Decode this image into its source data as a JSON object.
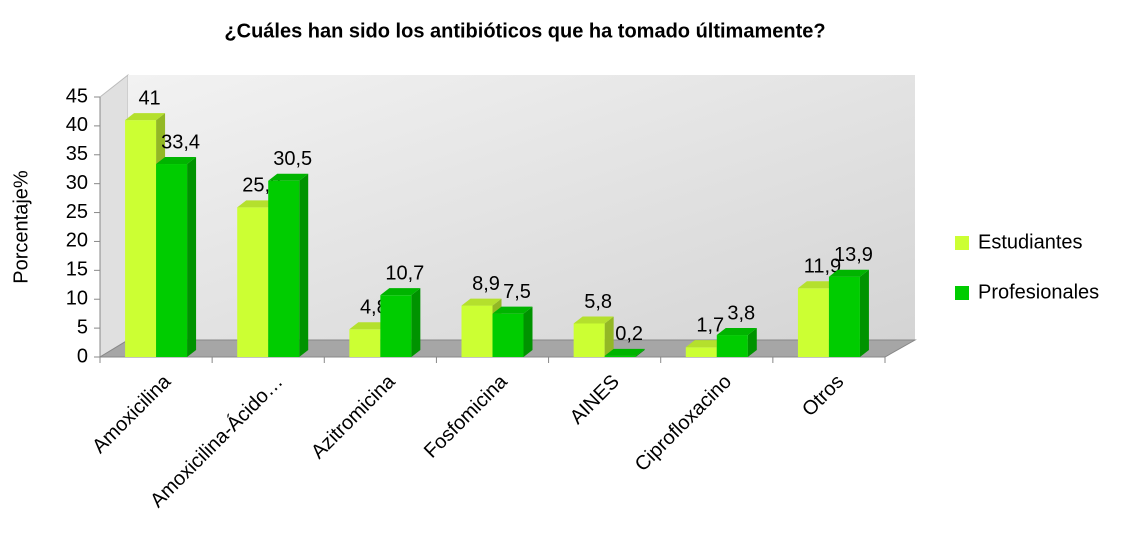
{
  "chart_data": {
    "type": "bar",
    "title": "¿Cuáles han sido los antibióticos que ha tomado últimamente?",
    "y_label": "Porcentaje%",
    "categories": [
      "Amoxicilina",
      "Amoxicilina-Ácido…",
      "Azitromicina",
      "Fosfomicina",
      "AINES",
      "Ciprofloxacino",
      "Otros"
    ],
    "series": [
      {
        "name": "Estudiantes",
        "color": "#ccff33",
        "values": [
          41,
          25.9,
          4.8,
          8.9,
          5.8,
          1.7,
          11.9
        ],
        "value_labels": [
          "41",
          "25,9",
          "4,8",
          "8,9",
          "5,8",
          "1,7",
          "11,9"
        ]
      },
      {
        "name": "Profesionales",
        "color": "#00cc00",
        "values": [
          33.4,
          30.5,
          10.7,
          7.5,
          0.2,
          3.8,
          13.9
        ],
        "value_labels": [
          "33,4",
          "30,5",
          "10,7",
          "7,5",
          "0,2",
          "3,8",
          "13,9"
        ]
      }
    ],
    "ylim": [
      0,
      45
    ],
    "yticks": [
      0,
      5,
      10,
      15,
      20,
      25,
      30,
      35,
      40,
      45
    ],
    "grid": false,
    "legend": "right"
  }
}
